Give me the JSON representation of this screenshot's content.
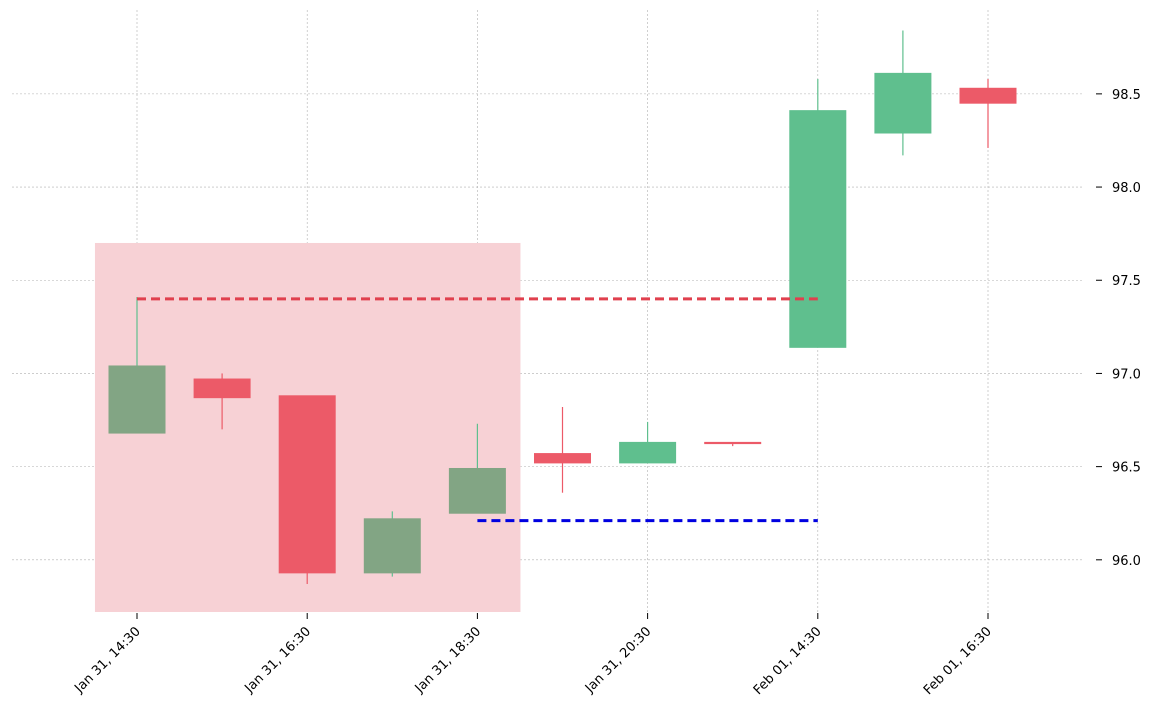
{
  "chart_data": {
    "type": "candlestick",
    "title": "",
    "xlabel": "",
    "ylabel": "",
    "ylim": [
      95.72,
      98.95
    ],
    "grid": true,
    "x_tick_labels": [
      "Jan 31, 14:30",
      "Jan 31, 16:30",
      "Jan 31, 18:30",
      "Jan 31, 20:30",
      "Feb 01, 14:30",
      "Feb 01, 16:30"
    ],
    "x_tick_candle_index": [
      0,
      2,
      4,
      6,
      8,
      10
    ],
    "y_ticks": [
      96.0,
      96.5,
      97.0,
      97.5,
      98.0,
      98.5
    ],
    "y_tick_labels": [
      "96.0",
      "96.5",
      "97.0",
      "97.5",
      "98.0",
      "98.5"
    ],
    "candles": [
      {
        "open": 96.68,
        "high": 97.41,
        "low": 96.68,
        "close": 97.04,
        "direction": "up"
      },
      {
        "open": 96.97,
        "high": 97.0,
        "low": 96.7,
        "close": 96.87,
        "direction": "down"
      },
      {
        "open": 96.88,
        "high": 96.88,
        "low": 95.87,
        "close": 95.93,
        "direction": "down"
      },
      {
        "open": 95.93,
        "high": 96.26,
        "low": 95.91,
        "close": 96.22,
        "direction": "up"
      },
      {
        "open": 96.25,
        "high": 96.73,
        "low": 96.25,
        "close": 96.49,
        "direction": "up"
      },
      {
        "open": 96.57,
        "high": 96.82,
        "low": 96.36,
        "close": 96.52,
        "direction": "down"
      },
      {
        "open": 96.52,
        "high": 96.74,
        "low": 96.52,
        "close": 96.63,
        "direction": "up"
      },
      {
        "open": 96.63,
        "high": 96.63,
        "low": 96.61,
        "close": 96.63,
        "direction": "down"
      },
      {
        "open": 97.14,
        "high": 98.58,
        "low": 97.14,
        "close": 98.41,
        "direction": "up"
      },
      {
        "open": 98.29,
        "high": 98.84,
        "low": 98.17,
        "close": 98.61,
        "direction": "up"
      },
      {
        "open": 98.53,
        "high": 98.58,
        "low": 98.21,
        "close": 98.45,
        "direction": "down"
      }
    ],
    "highlight_zone": {
      "from_index": -0.5,
      "to_index": 4.5,
      "y_low": 95.72,
      "y_high": 97.7,
      "color": "#f7d1d5"
    },
    "levels": [
      {
        "name": "resistance",
        "value": 97.4,
        "from_index": 0,
        "to_index": 8,
        "color": "#e0404e",
        "style": "dashed"
      },
      {
        "name": "support",
        "value": 96.21,
        "from_index": 4,
        "to_index": 8,
        "color": "#0000e0",
        "style": "dashed"
      }
    ],
    "colors": {
      "up": "#5fbf8e",
      "down": "#ec5a68",
      "up_in_zone": "#82a584",
      "grid": "#b0b0b0"
    }
  }
}
